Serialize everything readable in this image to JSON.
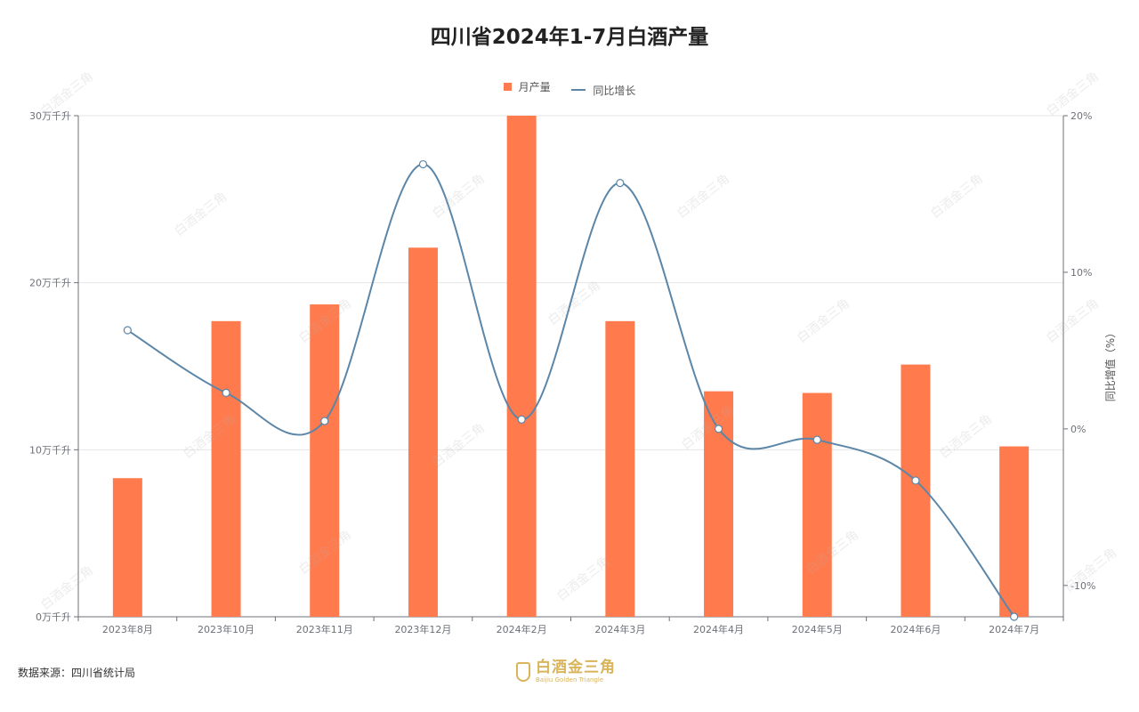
{
  "title": "四川省2024年1-7月白酒产量",
  "legend": {
    "bar_label": "月产量",
    "line_label": "同比增长"
  },
  "source": "数据来源：四川省统计局",
  "logo": {
    "cn": "白酒金三角",
    "en": "Baijiu Golden Triangle",
    "color": "#D9B45A"
  },
  "colors": {
    "bar": "#FF7A4D",
    "line": "#5B86A8",
    "grid": "#E6E6E6",
    "axis": "#6E7079"
  },
  "chart_data": {
    "type": "bar",
    "title": "四川省2024年1-7月白酒产量",
    "categories": [
      "2023年8月",
      "2023年10月",
      "2023年11月",
      "2023年12月",
      "2024年2月",
      "2024年3月",
      "2024年4月",
      "2024年5月",
      "2024年6月",
      "2024年7月"
    ],
    "series": [
      {
        "name": "月产量",
        "type": "bar",
        "axis": "left",
        "values": [
          8.3,
          17.7,
          18.7,
          22.1,
          30.0,
          17.7,
          13.5,
          13.4,
          15.1,
          10.2
        ]
      },
      {
        "name": "同比增长",
        "type": "line",
        "axis": "right",
        "smooth": true,
        "values": [
          6.3,
          2.3,
          0.5,
          16.9,
          0.6,
          15.7,
          0.0,
          -0.7,
          -3.3,
          -12.0
        ]
      }
    ],
    "y_left": {
      "ticks": [
        "0万千升",
        "10万千升",
        "20万千升",
        "30万千升"
      ],
      "range": [
        0,
        30
      ]
    },
    "y_right": {
      "label": "同比增值（%）",
      "ticks": [
        "-10%",
        "0%",
        "10%",
        "20%"
      ],
      "range": [
        -12,
        20
      ],
      "tick_values": [
        -10,
        0,
        10,
        20
      ]
    },
    "grid": true,
    "legend_position": "top-center"
  }
}
